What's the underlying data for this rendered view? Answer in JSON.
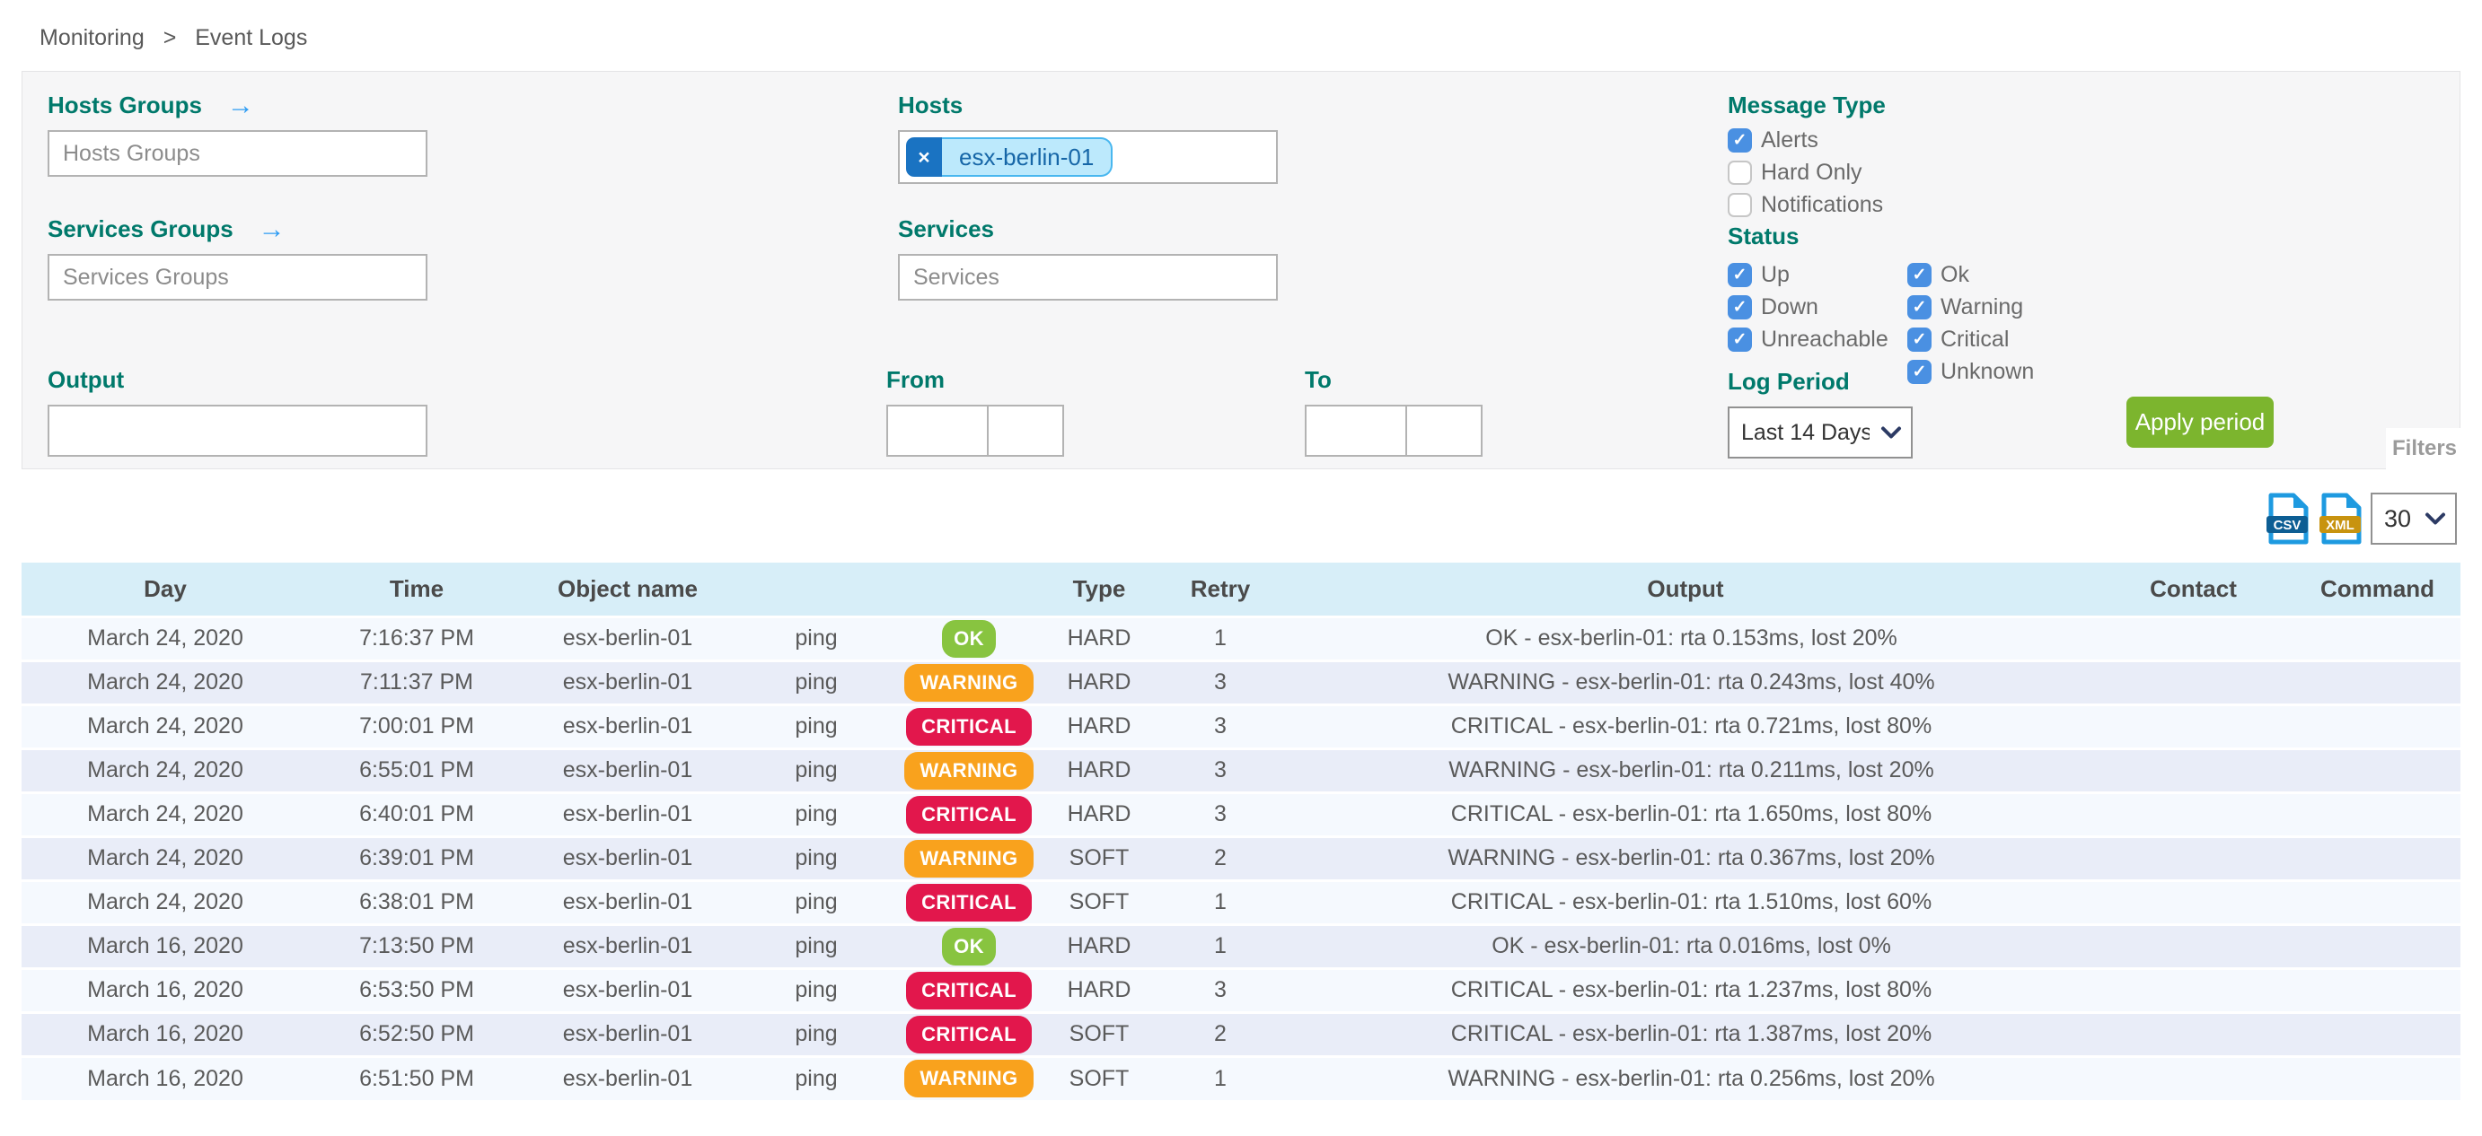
{
  "breadcrumb": {
    "items": [
      "Monitoring",
      "Event Logs"
    ],
    "separator": ">"
  },
  "filters": {
    "panel_tab_label": "Filters",
    "hosts_groups": {
      "label": "Hosts Groups",
      "arrow_icon": "→",
      "placeholder": "Hosts Groups",
      "value": ""
    },
    "services_groups": {
      "label": "Services Groups",
      "arrow_icon": "→",
      "placeholder": "Services Groups",
      "value": ""
    },
    "hosts": {
      "label": "Hosts",
      "chips": [
        {
          "text": "esx-berlin-01",
          "remove_glyph": "×"
        }
      ]
    },
    "services": {
      "label": "Services",
      "placeholder": "Services",
      "value": ""
    },
    "output": {
      "label": "Output",
      "value": ""
    },
    "from": {
      "label": "From",
      "date_value": "",
      "time_value": ""
    },
    "to": {
      "label": "To",
      "date_value": "",
      "time_value": ""
    },
    "message_type": {
      "label": "Message Type",
      "options": [
        {
          "label": "Alerts",
          "checked": true
        },
        {
          "label": "Hard Only",
          "checked": false
        },
        {
          "label": "Notifications",
          "checked": false
        }
      ]
    },
    "status": {
      "label": "Status",
      "host_options": [
        {
          "label": "Up",
          "checked": true
        },
        {
          "label": "Down",
          "checked": true
        },
        {
          "label": "Unreachable",
          "checked": true
        }
      ],
      "service_options": [
        {
          "label": "Ok",
          "checked": true
        },
        {
          "label": "Warning",
          "checked": true
        },
        {
          "label": "Critical",
          "checked": true
        },
        {
          "label": "Unknown",
          "checked": true
        }
      ]
    },
    "log_period": {
      "label": "Log Period",
      "selected": "Last 14 Days"
    },
    "apply_button_label": "Apply period"
  },
  "toolbar": {
    "export_csv_label": "CSV",
    "export_xml_label": "XML",
    "page_size": "30"
  },
  "table": {
    "columns": [
      "Day",
      "Time",
      "Object name",
      "",
      "",
      "Type",
      "Retry",
      "Output",
      "Contact",
      "Command"
    ],
    "rows": [
      {
        "day": "March 24, 2020",
        "time": "7:16:37 PM",
        "object_name": "esx-berlin-01",
        "service": "ping",
        "status": "OK",
        "state_type": "HARD",
        "retry": "1",
        "output": "OK - esx-berlin-01: rta 0.153ms, lost 20%",
        "contact": "",
        "command": ""
      },
      {
        "day": "March 24, 2020",
        "time": "7:11:37 PM",
        "object_name": "esx-berlin-01",
        "service": "ping",
        "status": "WARNING",
        "state_type": "HARD",
        "retry": "3",
        "output": "WARNING - esx-berlin-01: rta 0.243ms, lost 40%",
        "contact": "",
        "command": ""
      },
      {
        "day": "March 24, 2020",
        "time": "7:00:01 PM",
        "object_name": "esx-berlin-01",
        "service": "ping",
        "status": "CRITICAL",
        "state_type": "HARD",
        "retry": "3",
        "output": "CRITICAL - esx-berlin-01: rta 0.721ms, lost 80%",
        "contact": "",
        "command": ""
      },
      {
        "day": "March 24, 2020",
        "time": "6:55:01 PM",
        "object_name": "esx-berlin-01",
        "service": "ping",
        "status": "WARNING",
        "state_type": "HARD",
        "retry": "3",
        "output": "WARNING - esx-berlin-01: rta 0.211ms, lost 20%",
        "contact": "",
        "command": ""
      },
      {
        "day": "March 24, 2020",
        "time": "6:40:01 PM",
        "object_name": "esx-berlin-01",
        "service": "ping",
        "status": "CRITICAL",
        "state_type": "HARD",
        "retry": "3",
        "output": "CRITICAL - esx-berlin-01: rta 1.650ms, lost 80%",
        "contact": "",
        "command": ""
      },
      {
        "day": "March 24, 2020",
        "time": "6:39:01 PM",
        "object_name": "esx-berlin-01",
        "service": "ping",
        "status": "WARNING",
        "state_type": "SOFT",
        "retry": "2",
        "output": "WARNING - esx-berlin-01: rta 0.367ms, lost 20%",
        "contact": "",
        "command": ""
      },
      {
        "day": "March 24, 2020",
        "time": "6:38:01 PM",
        "object_name": "esx-berlin-01",
        "service": "ping",
        "status": "CRITICAL",
        "state_type": "SOFT",
        "retry": "1",
        "output": "CRITICAL - esx-berlin-01: rta 1.510ms, lost 60%",
        "contact": "",
        "command": ""
      },
      {
        "day": "March 16, 2020",
        "time": "7:13:50 PM",
        "object_name": "esx-berlin-01",
        "service": "ping",
        "status": "OK",
        "state_type": "HARD",
        "retry": "1",
        "output": "OK - esx-berlin-01: rta 0.016ms, lost 0%",
        "contact": "",
        "command": ""
      },
      {
        "day": "March 16, 2020",
        "time": "6:53:50 PM",
        "object_name": "esx-berlin-01",
        "service": "ping",
        "status": "CRITICAL",
        "state_type": "HARD",
        "retry": "3",
        "output": "CRITICAL - esx-berlin-01: rta 1.237ms, lost 80%",
        "contact": "",
        "command": ""
      },
      {
        "day": "March 16, 2020",
        "time": "6:52:50 PM",
        "object_name": "esx-berlin-01",
        "service": "ping",
        "status": "CRITICAL",
        "state_type": "SOFT",
        "retry": "2",
        "output": "CRITICAL - esx-berlin-01: rta 1.387ms, lost 20%",
        "contact": "",
        "command": ""
      },
      {
        "day": "March 16, 2020",
        "time": "6:51:50 PM",
        "object_name": "esx-berlin-01",
        "service": "ping",
        "status": "WARNING",
        "state_type": "SOFT",
        "retry": "1",
        "output": "WARNING - esx-berlin-01: rta 0.256ms, lost 20%",
        "contact": "",
        "command": ""
      }
    ]
  },
  "ui": {
    "check_glyph": "✓"
  },
  "colors": {
    "label_teal": "#00796B",
    "checkbox_blue": "#4A90E2",
    "arrow_blue": "#2E9CF3",
    "chip_bg": "#BCE9FC",
    "chip_border": "#49B7EF",
    "chip_text": "#1666A7",
    "chip_remove_bg": "#1A73C2",
    "apply_green": "#7CB52E",
    "table_header_bg": "#D7EEF8",
    "row_odd_bg": "#F5F9FE",
    "row_even_bg": "#E9EDF8",
    "status_ok": "#88C440",
    "status_warning": "#F9A21D",
    "status_critical": "#E2174C",
    "csv_band": "#0D5E94",
    "xml_band": "#C8930F",
    "file_icon_blue": "#1E9AE0"
  }
}
